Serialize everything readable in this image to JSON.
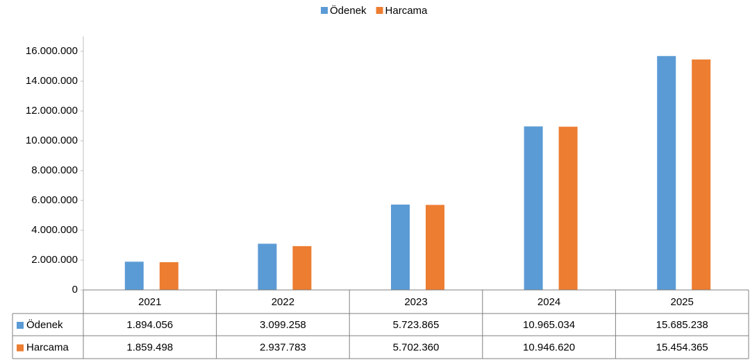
{
  "chart_data": {
    "type": "bar",
    "categories": [
      "2021",
      "2022",
      "2023",
      "2024",
      "2025"
    ],
    "series": [
      {
        "name": "Ödenek",
        "color": "#5b9bd5",
        "values": [
          1894056,
          3099258,
          5723865,
          10965034,
          15685238
        ],
        "value_labels": [
          "1.894.056",
          "3.099.258",
          "5.723.865",
          "10.965.034",
          "15.685.238"
        ]
      },
      {
        "name": "Harcama",
        "color": "#ed7d31",
        "values": [
          1859498,
          2937783,
          5702360,
          10946620,
          15454365
        ],
        "value_labels": [
          "1.859.498",
          "2.937.783",
          "5.702.360",
          "10.946.620",
          "15.454.365"
        ]
      }
    ],
    "ylim": [
      0,
      17000000
    ],
    "yticks": [
      0,
      {
        "value": 2000000,
        "label": "2.000.000"
      },
      {
        "value": 4000000,
        "label": "4.000.000"
      },
      {
        "value": 6000000,
        "label": "6.000.000"
      },
      {
        "value": 8000000,
        "label": "8.000.000"
      },
      {
        "value": 10000000,
        "label": "10.000.000"
      },
      {
        "value": 12000000,
        "label": "12.000.000"
      },
      {
        "value": 14000000,
        "label": "14.000.000"
      },
      {
        "value": 16000000,
        "label": "16.000.000"
      }
    ],
    "grid": false,
    "legend": "top"
  }
}
